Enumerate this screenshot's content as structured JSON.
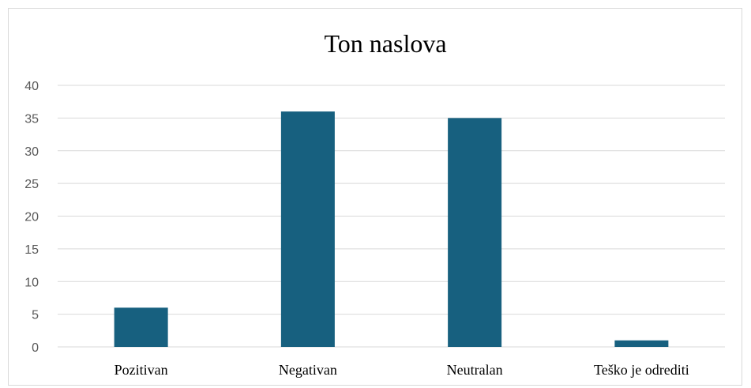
{
  "chart_data": {
    "type": "bar",
    "title": "Ton naslova",
    "categories": [
      "Pozitivan",
      "Negativan",
      "Neutralan",
      "Teško je odrediti"
    ],
    "values": [
      6,
      36,
      35,
      1
    ],
    "ylim": [
      0,
      40
    ],
    "yticks": [
      0,
      5,
      10,
      15,
      20,
      25,
      30,
      35,
      40
    ],
    "grid": true,
    "bar_color": "#17607f",
    "gridline_color": "#d9d9d9"
  }
}
